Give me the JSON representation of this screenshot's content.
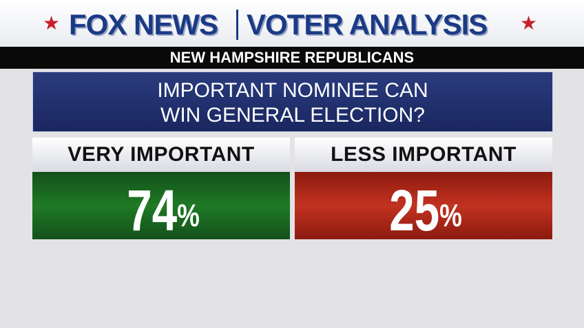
{
  "header": {
    "brand": "FOX NEWS",
    "title": "VOTER ANALYSIS",
    "subtitle": "NEW HAMPSHIRE REPUBLICANS"
  },
  "question": {
    "lines": [
      "IMPORTANT NOMINEE CAN",
      "WIN GENERAL ELECTION?"
    ]
  },
  "panels": [
    {
      "label": "VERY IMPORTANT",
      "value": 74,
      "unit": "%"
    },
    {
      "label": "LESS IMPORTANT",
      "value": 25,
      "unit": "%"
    }
  ]
}
